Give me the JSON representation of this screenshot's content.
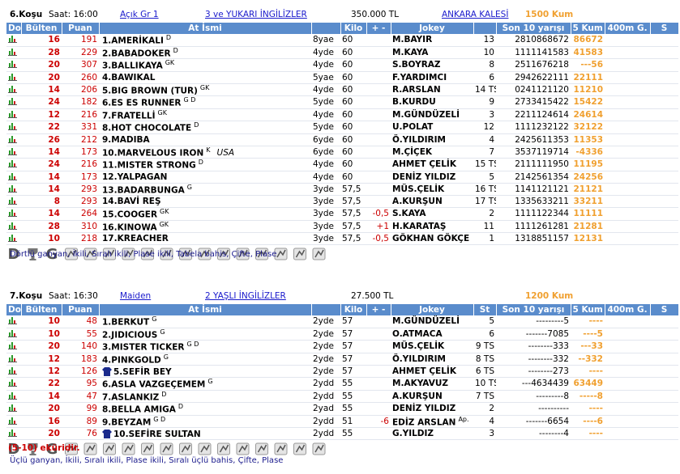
{
  "races": [
    {
      "no": "6.Koşu",
      "time": "Saat: 16:00",
      "class": "Açık  Gr 1",
      "group": "3 ve YUKARI İNGİLİZLER",
      "prize": "350.000 TL",
      "cup": "ANKARA KALESİ",
      "track": "1500 Kum",
      "columns": [
        "Dozaj",
        "Bülten",
        "Puan",
        "At İsmi",
        null,
        "Kilo",
        "+ -",
        "Jokey",
        null,
        "Son 10 yarışı",
        "5 Kum",
        "400m G.",
        "S"
      ],
      "rows": [
        {
          "bulten": 16,
          "puan": 191,
          "name": "1.AMERİKALI",
          "sup": "D",
          "age": "8yae",
          "kilo": "60",
          "jockey": "M.BAYIR",
          "st": "13",
          "son10": "2810868672",
          "kum": "86672"
        },
        {
          "bulten": 28,
          "puan": 229,
          "name": "2.BABADOKER",
          "sup": "D",
          "age": "4yde",
          "kilo": "60",
          "jockey": "M.KAYA",
          "st": "10",
          "son10": "1111141583",
          "kum": "41583"
        },
        {
          "bulten": 20,
          "puan": 307,
          "name": "3.BALLIKAYA",
          "sup": "GK",
          "age": "4yde",
          "kilo": "60",
          "jockey": "S.BOYRAZ",
          "st": "8",
          "son10": "2511676218",
          "kum": "---56"
        },
        {
          "bulten": 20,
          "puan": 260,
          "name": "4.BAWIKAL",
          "age": "5yae",
          "kilo": "60",
          "jockey": "F.YARDIMCI",
          "st": "6",
          "son10": "2942622111",
          "kum": "22111"
        },
        {
          "bulten": 14,
          "puan": 206,
          "name": "5.BIG BROWN (TUR)",
          "sup": "GK",
          "age": "4yde",
          "kilo": "60",
          "jockey": "R.ARSLAN",
          "st": "14 TS",
          "son10": "0241121120",
          "kum": "11210"
        },
        {
          "bulten": 24,
          "puan": 182,
          "name": "6.ES ES RUNNER",
          "sup": "G D",
          "age": "5yde",
          "kilo": "60",
          "jockey": "B.KURDU",
          "st": "9",
          "son10": "2733415422",
          "kum": "15422"
        },
        {
          "bulten": 12,
          "puan": 216,
          "name": "7.FRATELLİ",
          "sup": "GK",
          "age": "4yde",
          "kilo": "60",
          "jockey": "M.GÜNDÜZELİ",
          "st": "3",
          "son10": "2211124614",
          "kum": "24614"
        },
        {
          "bulten": 22,
          "puan": 331,
          "name": "8.HOT CHOCOLATE",
          "sup": "D",
          "age": "5yde",
          "kilo": "60",
          "jockey": "U.POLAT",
          "st": "12",
          "son10": "1111232122",
          "kum": "32122"
        },
        {
          "bulten": 26,
          "puan": 212,
          "name": "9.MADIBA",
          "age": "6yde",
          "kilo": "60",
          "jockey": "Ö.YILDIRIM",
          "st": "4",
          "son10": "2425611353",
          "kum": "11353"
        },
        {
          "bulten": 14,
          "puan": 173,
          "name": "10.MARVELOUS IRON",
          "sup": "K",
          "origin": "USA",
          "age": "6yde",
          "kilo": "60",
          "jockey": "M.ÇİÇEK",
          "st": "7",
          "son10": "3537119714",
          "kum": "-4336"
        },
        {
          "bulten": 24,
          "puan": 216,
          "name": "11.MISTER STRONG",
          "sup": "D",
          "age": "4yde",
          "kilo": "60",
          "jockey": "AHMET ÇELİK",
          "st": "15 TS",
          "son10": "2111111950",
          "kum": "11195"
        },
        {
          "bulten": 14,
          "puan": 173,
          "name": "12.YALPAGAN",
          "age": "4yde",
          "kilo": "60",
          "jockey": "DENİZ YILDIZ",
          "st": "5",
          "son10": "2142561354",
          "kum": "24256"
        },
        {
          "bulten": 14,
          "puan": 293,
          "name": "13.BADARBUNGA",
          "sup": "G",
          "age": "3yde",
          "kilo": "57,5",
          "jockey": "MÜS.ÇELİK",
          "st": "16 TS",
          "son10": "1141121121",
          "kum": "21121"
        },
        {
          "bulten": 8,
          "puan": 293,
          "name": "14.BAVİ REŞ",
          "age": "3yde",
          "kilo": "57,5",
          "jockey": "A.KURŞUN",
          "st": "17 TS",
          "son10": "1335633211",
          "kum": "33211"
        },
        {
          "bulten": 14,
          "puan": 264,
          "name": "15.COOGER",
          "sup": "GK",
          "age": "3yde",
          "kilo": "57,5",
          "pm": "-0,5",
          "jockey": "S.KAYA",
          "st": "2",
          "son10": "1111122344",
          "kum": "11111"
        },
        {
          "bulten": 28,
          "puan": 310,
          "name": "16.KINOWA",
          "sup": "GK",
          "age": "3yde",
          "kilo": "57,5",
          "pm": "+1",
          "jockey": "H.KARATAŞ",
          "st": "11",
          "son10": "1111261281",
          "kum": "21281"
        },
        {
          "bulten": 10,
          "puan": 218,
          "name": "17.KREACHER",
          "age": "3yde",
          "kilo": "57,5",
          "pm": "-0,5",
          "jockey": "GÖKHAN GÖKÇE",
          "st": "1",
          "son10": "1318851157",
          "kum": "12131"
        }
      ],
      "bets": "Dörtlü ganyan, İkili, Sıralı ikili, Plase ikili, Tabela bahis, Çifte, Plase",
      "toolbar": [
        "D",
        "G"
      ]
    },
    {
      "no": "7.Koşu",
      "time": "Saat: 16:30",
      "class": "Maiden ",
      "group": "2 YAŞLI İNGİLİZLER",
      "prize": "27.500 TL",
      "track": "1200 Kum",
      "columns": [
        "Dozaj",
        "Bülten",
        "Puan",
        "At İsmi",
        null,
        "Kilo",
        "+ -",
        "Jokey",
        "St",
        "Son 10 yarışı",
        "5 Kum",
        "400m G.",
        "S"
      ],
      "rows": [
        {
          "bulten": 10,
          "puan": 48,
          "name": "1.BERKUT",
          "sup": "G",
          "age": "2yde",
          "kilo": "57",
          "jockey": "M.GÜNDÜZELİ",
          "st": "5",
          "son10": "---------5",
          "kum": "----"
        },
        {
          "bulten": 10,
          "puan": 55,
          "name": "2.JIDICIOUS",
          "sup": "G",
          "age": "2yde",
          "kilo": "57",
          "jockey": "O.ATMACA",
          "st": "6",
          "son10": "-------7085",
          "kum": "----5"
        },
        {
          "bulten": 20,
          "puan": 140,
          "name": "3.MISTER TICKER",
          "sup": "G D",
          "age": "2yde",
          "kilo": "57",
          "jockey": "MÜS.ÇELİK",
          "st": "9 TS",
          "son10": "--------333",
          "kum": "---33"
        },
        {
          "bulten": 12,
          "puan": 183,
          "name": "4.PINKGOLD",
          "sup": "G",
          "age": "2yde",
          "kilo": "57",
          "jockey": "Ö.YILDIRIM",
          "st": "8 TS",
          "son10": "--------332",
          "kum": "--332"
        },
        {
          "bulten": 12,
          "puan": 126,
          "name": "5.SEFİR BEY",
          "ekuri": true,
          "age": "2yde",
          "kilo": "57",
          "jockey": "AHMET ÇELİK",
          "st": "6 TS",
          "son10": "--------273",
          "kum": "----"
        },
        {
          "bulten": 22,
          "puan": 95,
          "name": "6.ASLA VAZGEÇEMEM",
          "sup": "G",
          "age": "2ydd",
          "kilo": "55",
          "jockey": "M.AKYAVUZ",
          "st": "10 TS",
          "son10": "---4634439",
          "kum": "63449"
        },
        {
          "bulten": 14,
          "puan": 47,
          "name": "7.ASLANKIZ",
          "sup": "D",
          "age": "2ydd",
          "kilo": "55",
          "jockey": "A.KURŞUN",
          "st": "7 TS",
          "son10": "---------8",
          "kum": "-----8"
        },
        {
          "bulten": 20,
          "puan": 99,
          "name": "8.BELLA AMIGA",
          "sup": "D",
          "age": "2yad",
          "kilo": "55",
          "jockey": "DENİZ YILDIZ",
          "st": "2",
          "son10": "----------",
          "kum": "----"
        },
        {
          "bulten": 16,
          "puan": 89,
          "name": "9.BEYZAM",
          "sup": "G D",
          "age": "2ydd",
          "kilo": "51",
          "pm": "-6",
          "jockey": "EDİZ ARSLAN",
          "jsup": "Ap.",
          "st": "4",
          "son10": "-------6654",
          "kum": "----6"
        },
        {
          "bulten": 20,
          "puan": 76,
          "name": "10.SEFİRE SULTAN",
          "ekuri": true,
          "age": "2ydd",
          "kilo": "55",
          "jockey": "G.YILDIZ",
          "st": "3",
          "son10": "--------4",
          "kum": "----"
        }
      ],
      "note": "(5-10) eküridir.",
      "bets": "Üçlü ganyan, İkili, Sıralı ikili, Plase ikili, Sıralı üçlü bahis, Çifte, Plase",
      "toolbar": [
        "D",
        "G"
      ]
    }
  ]
}
